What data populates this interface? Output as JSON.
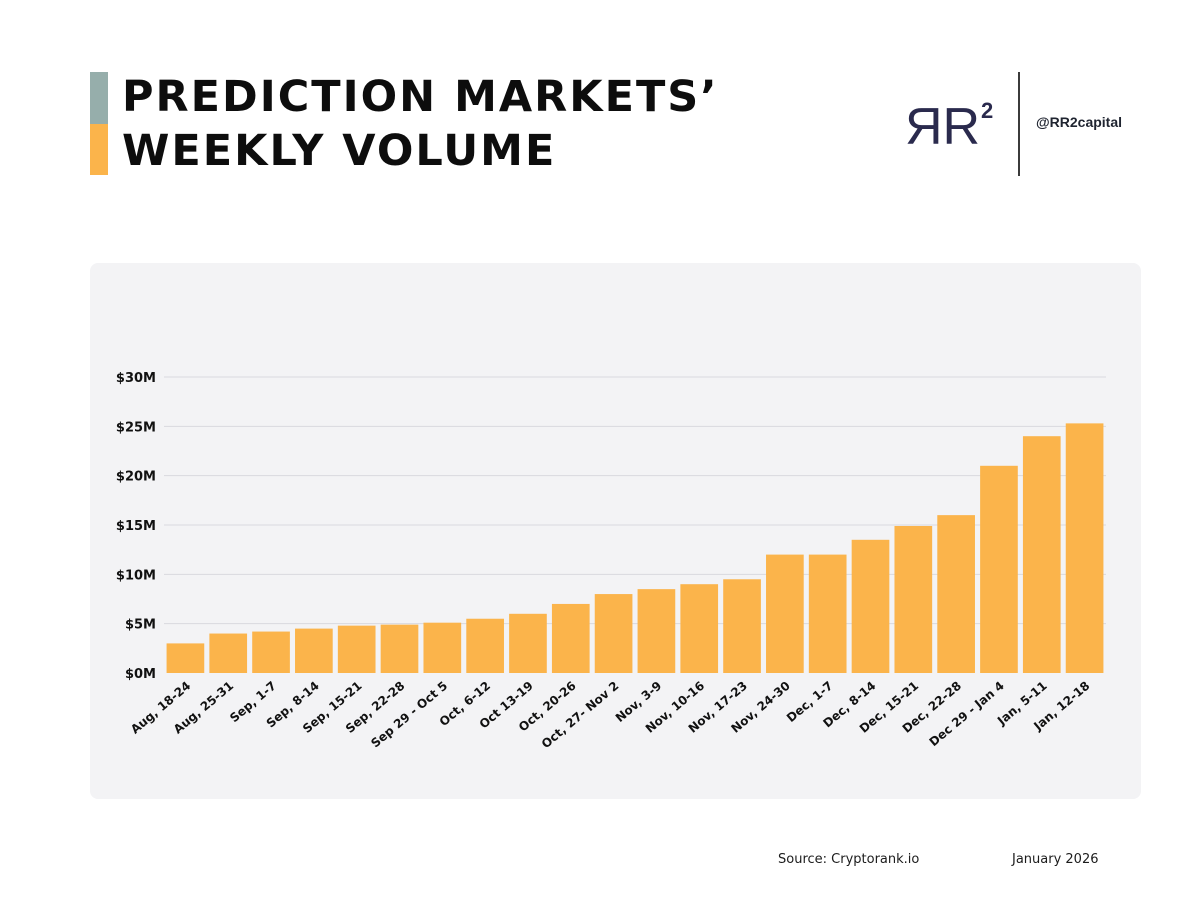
{
  "header": {
    "title_line1": "PREDICTION MARKETS’",
    "title_line2": "WEEKLY VOLUME",
    "accent_top_color": "#96aeab",
    "accent_bottom_color": "#fbb44b"
  },
  "brand": {
    "logo_text": "ЯR",
    "logo_superscript": "2",
    "logo_color": "#2a2a4d",
    "handle": "@RR2capital"
  },
  "footer": {
    "source": "Source: Cryptorank.io",
    "date": "January 2026"
  },
  "chart_data": {
    "type": "bar",
    "title": "PREDICTION MARKETS’ WEEKLY VOLUME",
    "xlabel": "",
    "ylabel": "",
    "ylim": [
      0,
      30
    ],
    "y_ticks": [
      0,
      5,
      10,
      15,
      20,
      25,
      30
    ],
    "y_tick_labels": [
      "$0M",
      "$5M",
      "$10M",
      "$15M",
      "$20M",
      "$25M",
      "$30M"
    ],
    "grid": true,
    "bar_color": "#fbb44b",
    "categories": [
      "Aug, 18-24",
      "Aug, 25-31",
      "Sep, 1-7",
      "Sep, 8-14",
      "Sep, 15-21",
      "Sep, 22-28",
      "Sep 29 - Oct 5",
      "Oct, 6-12",
      "Oct 13-19",
      "Oct, 20-26",
      "Oct, 27- Nov 2",
      "Nov, 3-9",
      "Nov, 10-16",
      "Nov, 17-23",
      "Nov, 24-30",
      "Dec, 1-7",
      "Dec, 8-14",
      "Dec, 15-21",
      "Dec, 22-28",
      "Dec 29 - Jan 4",
      "Jan, 5-11",
      "Jan, 12-18"
    ],
    "values": [
      3.0,
      4.0,
      4.2,
      4.5,
      4.8,
      4.9,
      5.1,
      5.5,
      6.0,
      7.0,
      8.0,
      8.5,
      9.0,
      9.5,
      12.0,
      12.0,
      13.5,
      14.9,
      16.0,
      21.0,
      24.0,
      25.3
    ]
  }
}
